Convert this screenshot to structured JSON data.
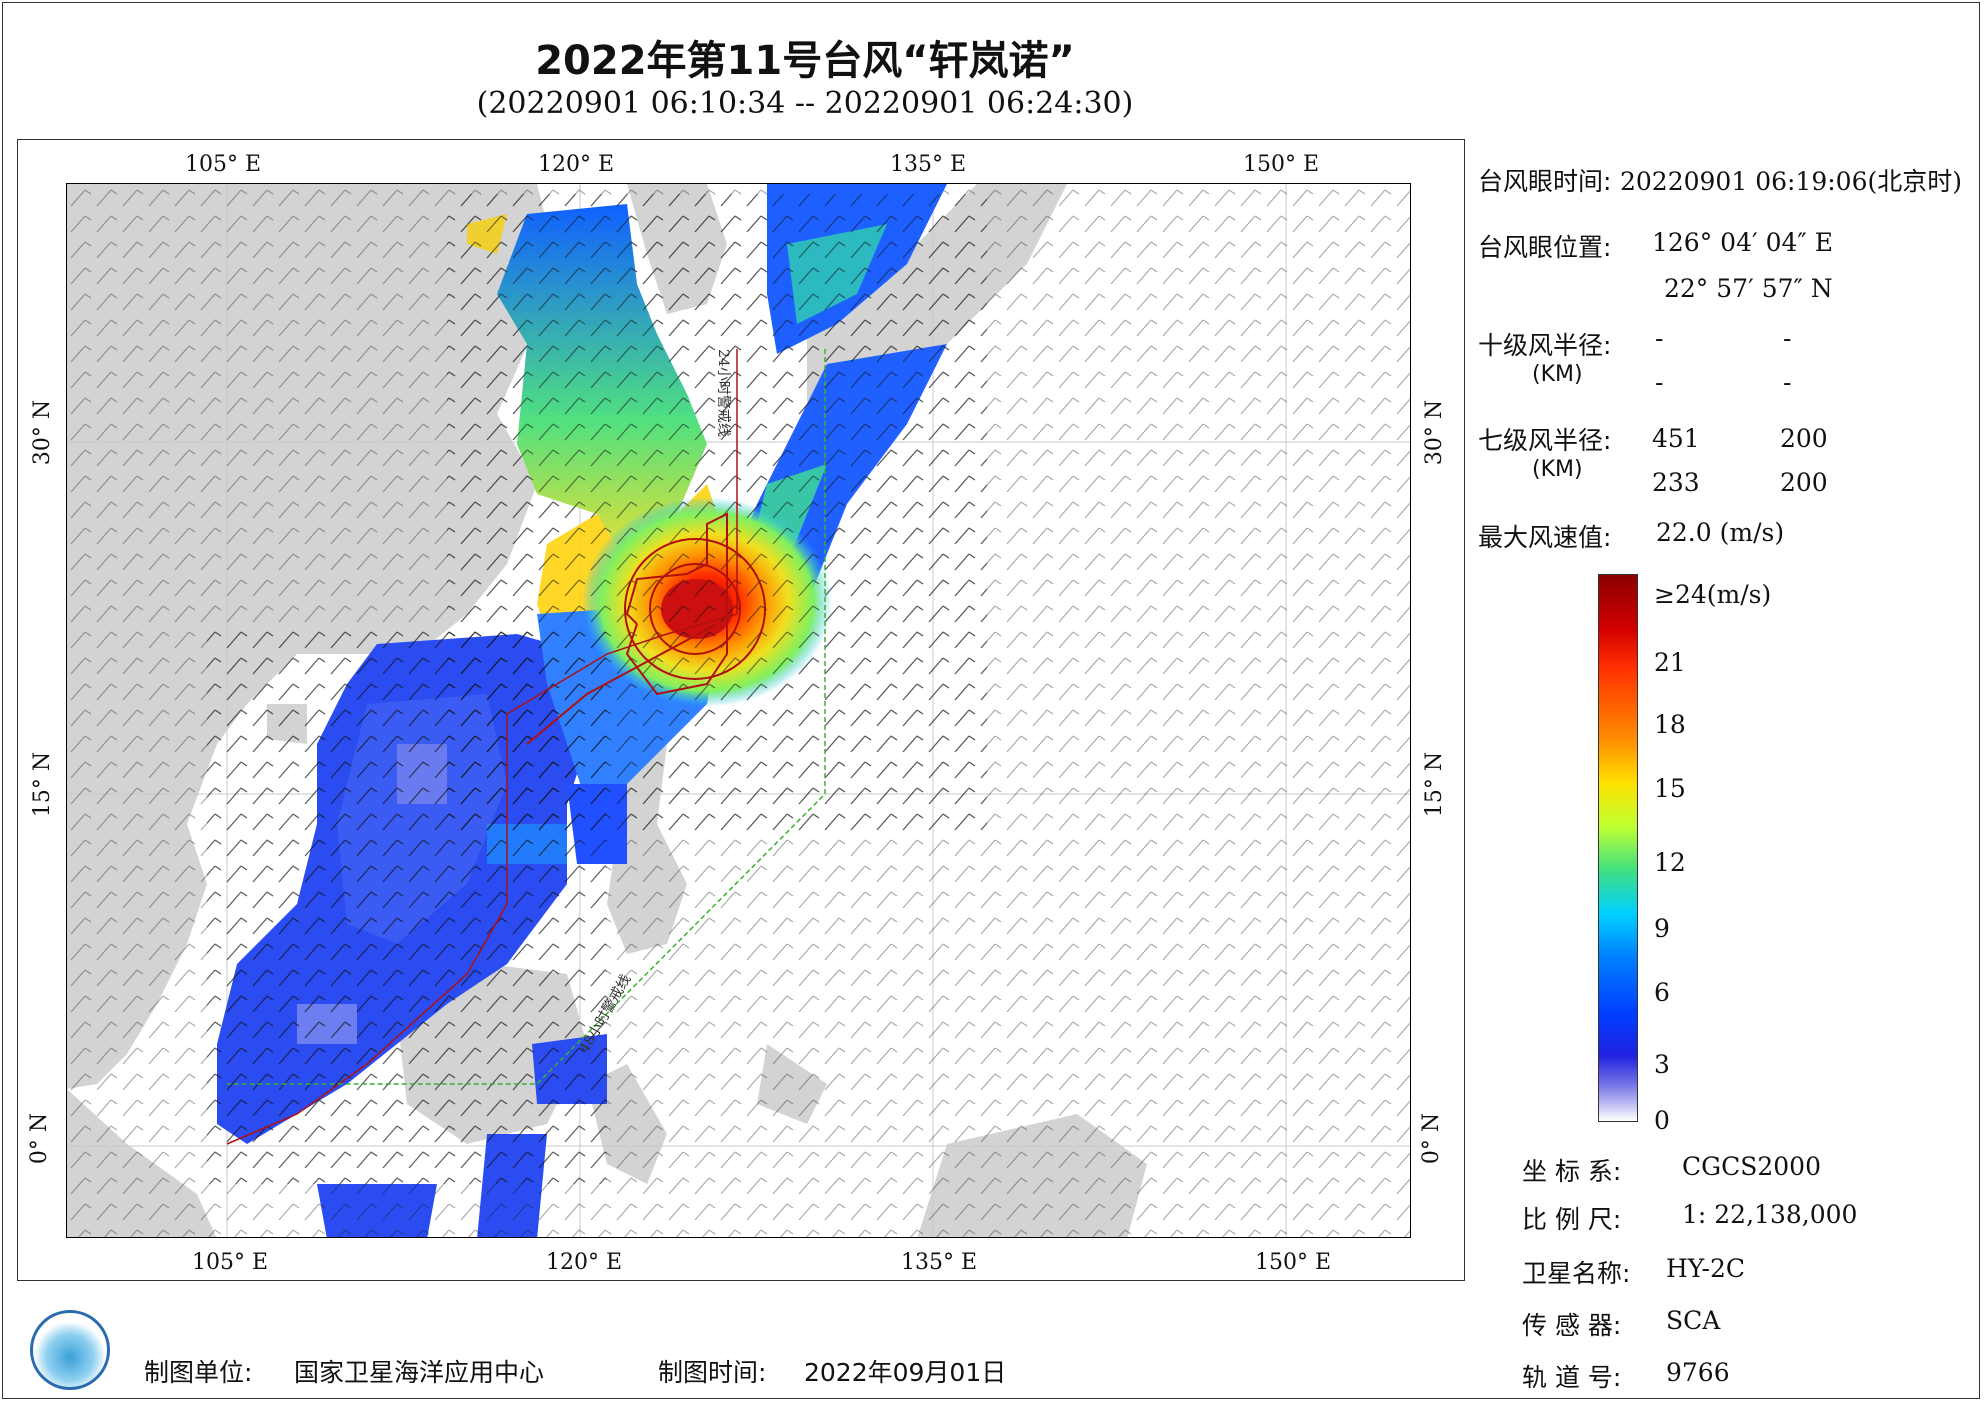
{
  "title": "2022年第11号台风“轩岚诺”",
  "subtitle": "(20220901 06:10:34 -- 20220901 06:24:30)",
  "axes": {
    "top_lon": [
      "105° E",
      "120° E",
      "135° E",
      "150° E"
    ],
    "bottom_lon": [
      "105° E",
      "120° E",
      "135° E",
      "150° E"
    ],
    "left_lat": [
      "30° N",
      "15° N",
      "0° N"
    ],
    "right_lat": [
      "30° N",
      "15° N",
      "0° N"
    ]
  },
  "map_annotations": {
    "line_24h": "24小时警戒线",
    "line_48h": "48小时警戒线"
  },
  "info": {
    "eye_time_label": "台风眼时间:",
    "eye_time_value": "20220901 06:19:06(北京时)",
    "eye_pos_label": "台风眼位置:",
    "eye_lon": "126° 04′ 04″ E",
    "eye_lat": "22° 57′ 57″ N",
    "r10_label": "十级风半径:",
    "r10_unit": "(KM)",
    "r10_v1": "-",
    "r10_v2": "-",
    "r10_v3": "-",
    "r10_v4": "-",
    "r7_label": "七级风半径:",
    "r7_unit": "(KM)",
    "r7_v1": "451",
    "r7_v2": "200",
    "r7_v3": "233",
    "r7_v4": "200",
    "max_wind_label": "最大风速值:",
    "max_wind_value": "22.0  (m/s)"
  },
  "legend": {
    "labels": [
      "≥24(m/s)",
      "21",
      "18",
      "15",
      "12",
      "9",
      "6",
      "3",
      "0"
    ]
  },
  "meta": {
    "crs_label": "坐 标 系:",
    "crs_value": "CGCS2000",
    "scale_label": "比 例 尺:",
    "scale_value": "1: 22,138,000",
    "sat_label": "卫星名称:",
    "sat_value": "HY-2C",
    "sensor_label": "传 感 器:",
    "sensor_value": "SCA",
    "orbit_label": "轨 道 号:",
    "orbit_value": "9766"
  },
  "footer": {
    "org_label": "制图单位:",
    "org_value": "国家卫星海洋应用中心",
    "date_label": "制图时间:",
    "date_value": "2022年09月01日"
  },
  "colors": {
    "land": "#d3d3d3",
    "sea": "#ffffff",
    "track": "#b01010",
    "warn24": "#1a1aa0",
    "warn48": "#3ab030"
  }
}
